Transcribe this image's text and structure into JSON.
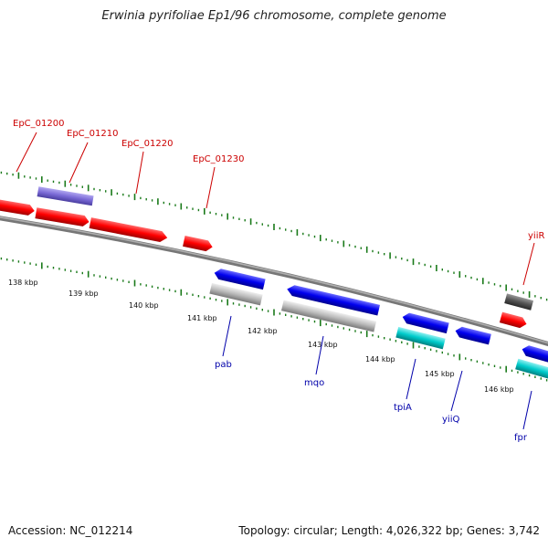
{
  "title": "Erwinia pyrifoliae Ep1/96 chromosome, complete genome",
  "footer": {
    "accession": "Accession: NC_012214",
    "summary": "Topology: circular; Length: 4,026,322 bp; Genes: 3,742"
  },
  "scale_labels": [
    "138 kbp",
    "139 kbp",
    "140 kbp",
    "141 kbp",
    "142 kbp",
    "143 kbp",
    "144 kbp",
    "145 kbp",
    "146 kbp"
  ],
  "top_genes": [
    "EpC_01200",
    "EpC_01210",
    "EpC_01220",
    "EpC_01230",
    "yiiR"
  ],
  "bottom_genes": [
    "pab",
    "mqo",
    "tpiA",
    "yiiQ",
    "fpr"
  ],
  "colors": {
    "forward_gene": "#ff0000",
    "reverse_gene": "#0000ee",
    "purple_feature": "#7a6ad6",
    "grey_feature": "#bbbbbb",
    "cyan_feature": "#00cccc",
    "dark_feature": "#555555",
    "backbone": "#808080",
    "tick": "#1a7a1a",
    "top_label": "#cc0000",
    "bottom_label": "#0000aa"
  }
}
